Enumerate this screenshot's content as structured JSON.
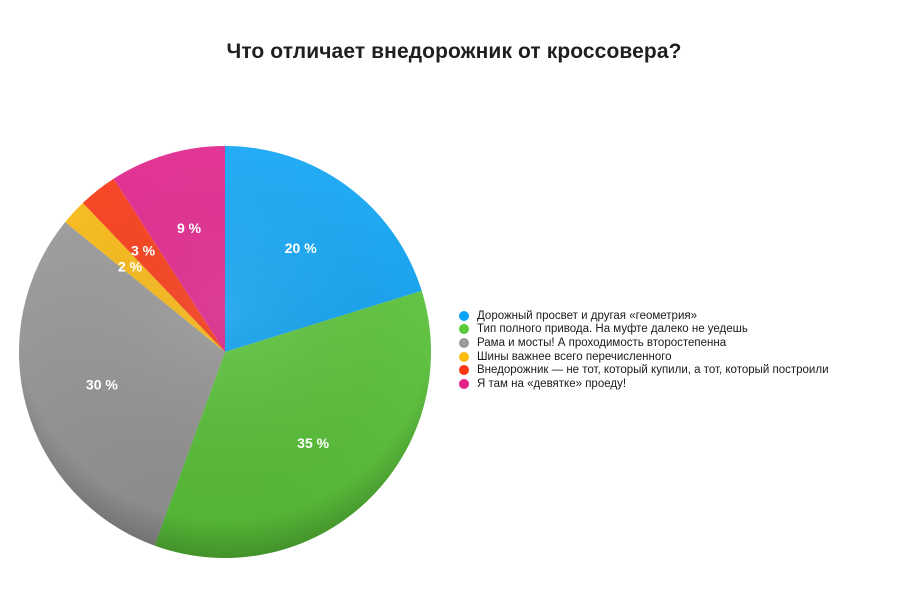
{
  "title": "Что отличает внедорожник от кроссовера?",
  "chart_data": {
    "type": "pie",
    "title": "Что отличает внедорожник от кроссовера?",
    "start_angle": "12 o'clock",
    "direction": "clockwise",
    "legend_position": "right",
    "slices": [
      {
        "label": "Дорожный просвет и другая «геометрия»",
        "value": 20,
        "display": "20 %",
        "color": "#0ba5f7"
      },
      {
        "label": "Тип полного привода. На муфте далеко не уедешь",
        "value": 35,
        "display": "35 %",
        "color": "#5cc93a"
      },
      {
        "label": "Рама и мосты! А проходимость второстепенна",
        "value": 30,
        "display": "30 %",
        "color": "#9a9a9a"
      },
      {
        "label": "Шины важнее всего перечисленного",
        "value": 2,
        "display": "2 %",
        "color": "#fdbb0f"
      },
      {
        "label": "Внедорожник — не тот, который купили, а тот, который построили",
        "value": 3,
        "display": "3 %",
        "color": "#fc3712"
      },
      {
        "label": "Я там на «девятке» проеду!",
        "value": 9,
        "display": "9 %",
        "color": "#e3208c"
      }
    ]
  },
  "legend": {
    "items": [
      {
        "label": "Дорожный просвет и другая «геометрия»",
        "color": "#0ba5f7"
      },
      {
        "label": "Тип полного привода. На муфте далеко не уедешь",
        "color": "#5cc93a"
      },
      {
        "label": "Рама и мосты! А проходимость второстепенна",
        "color": "#9a9a9a"
      },
      {
        "label": "Шины важнее всего перечисленного",
        "color": "#fdbb0f"
      },
      {
        "label": "Внедорожник — не тот, который купили, а тот, который построили",
        "color": "#fc3712"
      },
      {
        "label": "Я там на «девятке» проеду!",
        "color": "#e3208c"
      }
    ]
  }
}
